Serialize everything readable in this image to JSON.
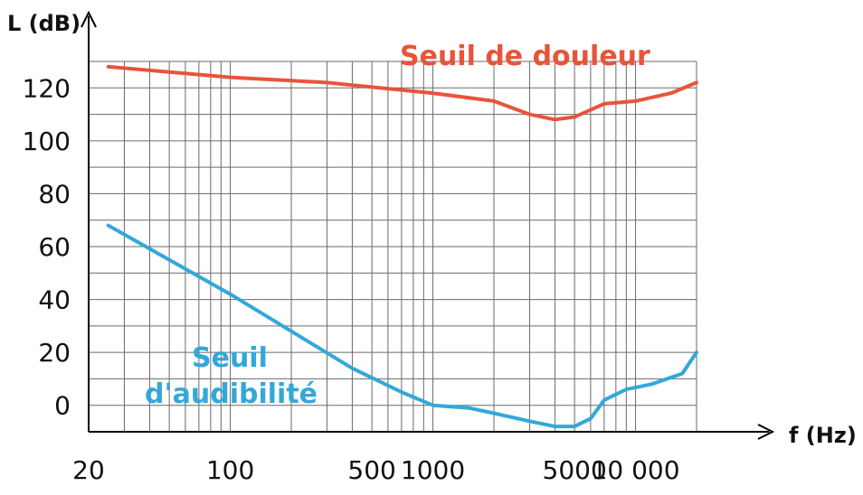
{
  "chart_data": {
    "type": "line",
    "xscale": "log",
    "xlim": [
      20,
      20000
    ],
    "ylim": [
      -10,
      130
    ],
    "ylabel": "L (dB)",
    "xlabel": "f (Hz)",
    "x_tick_labels": [
      "20",
      "100",
      "500",
      "1000",
      "5000",
      "10 000"
    ],
    "x_tick_values": [
      20,
      100,
      500,
      1000,
      5000,
      10000
    ],
    "y_ticks": [
      0,
      20,
      40,
      60,
      80,
      100,
      120
    ],
    "grid": true,
    "colors": {
      "pain": "#e8543a",
      "audibility": "#33a8d8",
      "grid": "#6a6a6a",
      "axis": "#000000"
    },
    "series": [
      {
        "name": "Seuil de douleur",
        "color_key": "pain",
        "points": [
          [
            25,
            128
          ],
          [
            100,
            124
          ],
          [
            300,
            122
          ],
          [
            1000,
            118
          ],
          [
            2000,
            115
          ],
          [
            3000,
            110
          ],
          [
            4000,
            108
          ],
          [
            5000,
            109
          ],
          [
            7000,
            114
          ],
          [
            10000,
            115
          ],
          [
            15000,
            118
          ],
          [
            20000,
            122
          ]
        ]
      },
      {
        "name": "Seuil\nd'audibilité",
        "color_key": "audibility",
        "points": [
          [
            25,
            68
          ],
          [
            50,
            55
          ],
          [
            100,
            42
          ],
          [
            200,
            28
          ],
          [
            400,
            14
          ],
          [
            700,
            5
          ],
          [
            1000,
            0
          ],
          [
            1500,
            -1
          ],
          [
            2000,
            -3
          ],
          [
            3000,
            -6
          ],
          [
            4000,
            -8
          ],
          [
            5000,
            -8
          ],
          [
            6000,
            -5
          ],
          [
            7000,
            2
          ],
          [
            9000,
            6
          ],
          [
            12000,
            8
          ],
          [
            17000,
            12
          ],
          [
            20000,
            20
          ]
        ]
      }
    ]
  }
}
